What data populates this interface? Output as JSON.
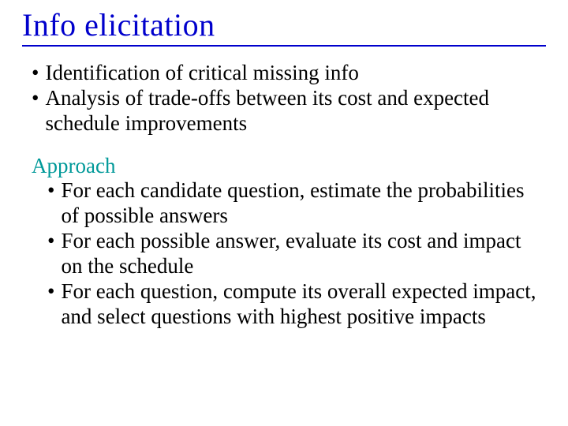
{
  "title": "Info elicitation",
  "colors": {
    "title": "#0000cc",
    "underline": "#0000cc",
    "heading": "#009999",
    "body": "#000000",
    "background": "#ffffff"
  },
  "typography": {
    "title_fontsize": 40,
    "body_fontsize": 27,
    "font_family": "Times New Roman"
  },
  "section1": {
    "items": [
      "Identification of critical missing info",
      "Analysis of trade-offs between its cost and expected schedule improvements"
    ]
  },
  "section2": {
    "heading": "Approach",
    "items": [
      "For each candidate question, estimate the probabilities of possible answers",
      "For each possible answer, evaluate its cost and impact on the schedule",
      "For each question, compute its overall expected impact, and select questions with highest positive impacts"
    ]
  }
}
